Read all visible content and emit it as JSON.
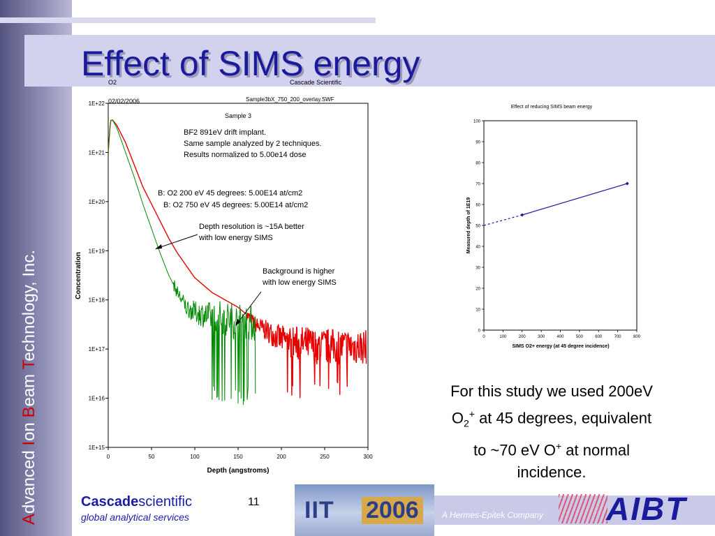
{
  "slide": {
    "title": "Effect of SIMS energy",
    "side_text": {
      "p1": "A",
      "p2": "dvanced ",
      "p3": "I",
      "p4": "on ",
      "p5": "B",
      "p6": "eam ",
      "p7": "T",
      "p8": "echnology, Inc."
    },
    "study_text": {
      "line1": "For this study we used 200eV",
      "o2_base": "O",
      "o2_sub": "2",
      "o2_sup": "+",
      "line2_rest": " at 45 degrees, equivalent",
      "line3_pre": "to ~70 eV O",
      "line3_sup": "+",
      "line3_post": " at normal",
      "line4": "incidence."
    },
    "page_number": "11",
    "footer": {
      "brand_bold": "Cascade",
      "brand_rest": "scientific",
      "tagline": "global analytical services",
      "iit": "IIT",
      "year": "2006",
      "hermes": "A Hermes-Epitek Company",
      "aibt": "AIBT"
    },
    "colors": {
      "title": "#1a1a9c",
      "red_series": "#e80000",
      "green_series": "#008a00",
      "line_series": "#1a1aa0"
    }
  },
  "chart_data": [
    {
      "type": "line",
      "header": {
        "left": "O2",
        "date": "02/02/2006",
        "right": "Cascade Scientific",
        "file": "Sample3bX_750_200_overlay.SWF"
      },
      "plot_title": "Sample 3",
      "xlabel": "Depth (angstroms)",
      "ylabel": "Concentration",
      "xlim": [
        0,
        300
      ],
      "ylim_log10": [
        15,
        22
      ],
      "x_ticks": [
        "0",
        "50",
        "100",
        "150",
        "200",
        "250",
        "300"
      ],
      "y_ticks": [
        "1E+15",
        "1E+16",
        "1E+17",
        "1E+18",
        "1E+19",
        "1E+20",
        "1E+21",
        "1E+22"
      ],
      "notes": {
        "n1": "BF2 891eV drift implant.",
        "n2": "Same sample analyzed by 2 techniques.",
        "n3": "Results normalized to 5.00e14 dose"
      },
      "legend": {
        "s1": "B: O2 200 eV 45 degrees: 5.00E14 at/cm2",
        "s2": "B: O2 750 eV 45 degrees: 5.00E14 at/cm2"
      },
      "annotations": {
        "a1l1": "Depth resolution is ~15A better",
        "a1l2": "with low energy SIMS",
        "a2l1": "Background is higher",
        "a2l2": "with low energy SIMS"
      },
      "series": [
        {
          "name": "B: O2 750 eV 45 degrees: 5.00E14 at/cm2",
          "color": "#e80000",
          "points": [
            [
              0,
              21.0
            ],
            [
              2,
              21.5
            ],
            [
              3,
              21.65
            ],
            [
              5,
              21.66
            ],
            [
              10,
              21.55
            ],
            [
              20,
              21.2
            ],
            [
              30,
              20.75
            ],
            [
              40,
              20.3
            ],
            [
              50,
              19.95
            ],
            [
              60,
              19.6
            ],
            [
              70,
              19.25
            ],
            [
              80,
              18.95
            ],
            [
              90,
              18.7
            ],
            [
              100,
              18.45
            ],
            [
              110,
              18.3
            ],
            [
              120,
              18.15
            ],
            [
              130,
              18.05
            ],
            [
              140,
              17.95
            ],
            [
              150,
              17.85
            ],
            [
              160,
              17.7
            ],
            [
              170,
              17.5
            ],
            [
              180,
              17.4
            ],
            [
              190,
              17.3
            ],
            [
              200,
              17.2
            ],
            [
              210,
              17.15
            ],
            [
              220,
              17.1
            ],
            [
              230,
              17.1
            ],
            [
              240,
              17.05
            ],
            [
              250,
              17.05
            ],
            [
              260,
              17.05
            ],
            [
              270,
              17.05
            ],
            [
              280,
              17.05
            ],
            [
              290,
              17.05
            ],
            [
              298,
              17.05
            ]
          ],
          "noise_from_x": 160,
          "noise_floor": 16.0
        },
        {
          "name": "B: O2 200 eV 45 degrees: 5.00E14 at/cm2",
          "color": "#008a00",
          "points": [
            [
              0,
              21.0
            ],
            [
              2,
              21.5
            ],
            [
              3,
              21.65
            ],
            [
              5,
              21.66
            ],
            [
              10,
              21.5
            ],
            [
              20,
              21.0
            ],
            [
              30,
              20.5
            ],
            [
              40,
              19.95
            ],
            [
              50,
              19.45
            ],
            [
              60,
              18.95
            ],
            [
              70,
              18.5
            ],
            [
              80,
              18.15
            ],
            [
              90,
              17.85
            ],
            [
              100,
              17.75
            ],
            [
              110,
              17.7
            ],
            [
              120,
              17.65
            ],
            [
              130,
              17.65
            ],
            [
              140,
              17.6
            ],
            [
              150,
              17.55
            ],
            [
              160,
              17.55
            ],
            [
              170,
              17.5
            ]
          ],
          "noise_from_x": 75,
          "noise_floor": 15.85
        }
      ]
    },
    {
      "type": "line",
      "title": "Effect of reducing SIMS beam energy",
      "xlabel": "SIMS O2+ energy (at 45 degree incidence)",
      "ylabel": "Measured depth of 1E19",
      "xlim": [
        0,
        800
      ],
      "ylim": [
        0,
        100
      ],
      "x_ticks": [
        "0",
        "100",
        "200",
        "300",
        "400",
        "500",
        "600",
        "700",
        "800"
      ],
      "y_ticks": [
        "0",
        "10",
        "20",
        "30",
        "40",
        "50",
        "60",
        "70",
        "80",
        "90",
        "100"
      ],
      "series": [
        {
          "name": "measured",
          "style": "solid",
          "color": "#1a1aa0",
          "points": [
            [
              200,
              55
            ],
            [
              750,
              70
            ]
          ]
        },
        {
          "name": "extrapolation",
          "style": "dashed",
          "color": "#1a1aa0",
          "points": [
            [
              0,
              50
            ],
            [
              200,
              55
            ]
          ]
        }
      ]
    }
  ]
}
